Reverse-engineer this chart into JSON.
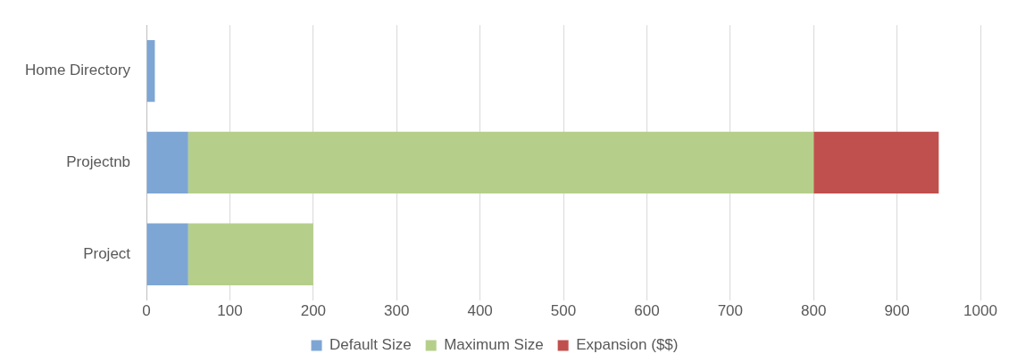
{
  "chart_data": {
    "type": "bar",
    "orientation": "horizontal",
    "stacked": true,
    "categories": [
      "Home Directory",
      "Projectnb",
      "Project"
    ],
    "series": [
      {
        "name": "Default Size",
        "color": "#7ea6d4",
        "values": [
          10,
          50,
          50
        ]
      },
      {
        "name": "Maximum Size",
        "color": "#b5cf8a",
        "values": [
          null,
          750,
          150
        ]
      },
      {
        "name": "Expansion ($$)",
        "color": "#c0504d",
        "values": [
          null,
          150,
          null
        ]
      }
    ],
    "xlim": [
      0,
      1000
    ],
    "xticks": [
      0,
      100,
      200,
      300,
      400,
      500,
      600,
      700,
      800,
      900,
      1000
    ],
    "grid": "x",
    "legend": "bottom"
  }
}
